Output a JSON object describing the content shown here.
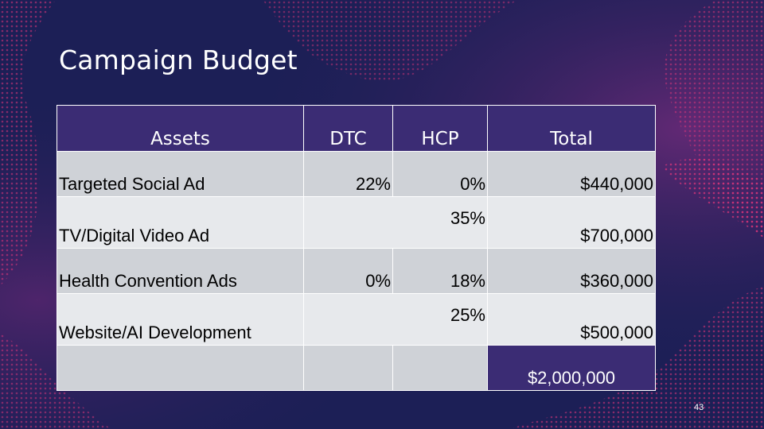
{
  "slide": {
    "title": "Campaign Budget",
    "page_number": "43",
    "colors": {
      "background": "#1c1f56",
      "header": "#3b2c74",
      "row_dark": "#cfd2d7",
      "row_light": "#e7e9ec",
      "accent_waves": "#d0336e"
    }
  },
  "table": {
    "headers": [
      "Assets",
      "DTC",
      "HCP",
      "Total"
    ],
    "rows": [
      {
        "asset": "Targeted Social Ad",
        "dtc": "22%",
        "hcp": "0%",
        "total": "$440,000"
      },
      {
        "asset": "TV/Digital Video Ad",
        "merged_share": "35%",
        "total": "$700,000"
      },
      {
        "asset": "Health Convention Ads",
        "dtc": "0%",
        "hcp": "18%",
        "total": "$360,000"
      },
      {
        "asset": "Website/AI Development",
        "merged_share": "25%",
        "total": "$500,000"
      }
    ],
    "grand_total": "$2,000,000"
  }
}
